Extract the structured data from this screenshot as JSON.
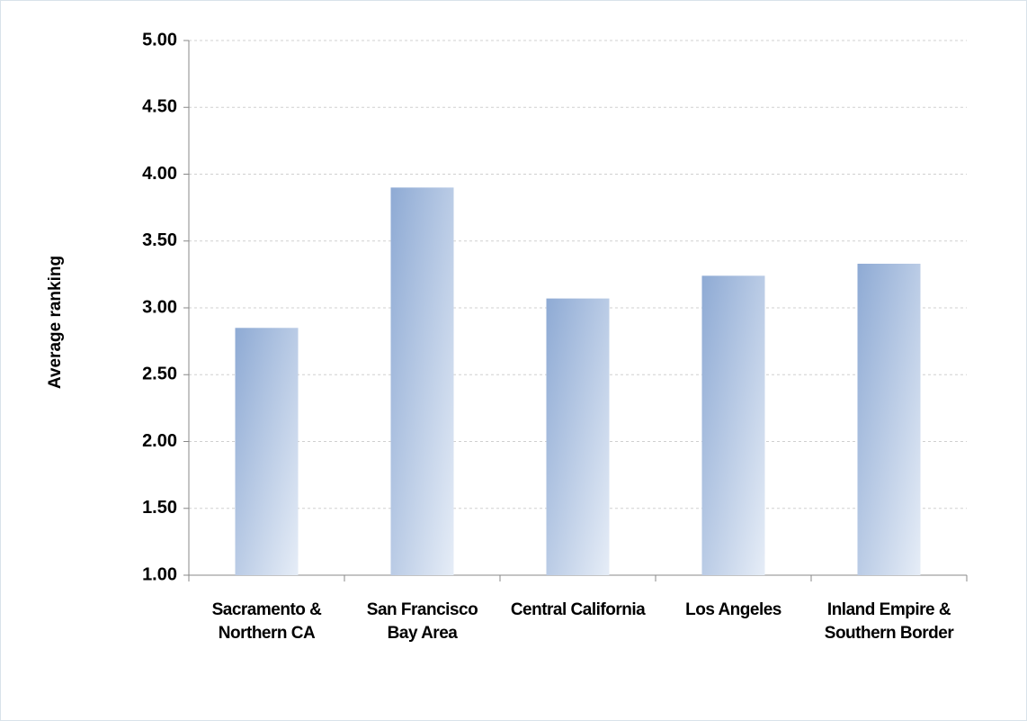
{
  "chart_data": {
    "type": "bar",
    "y_label": "Average ranking",
    "categories": [
      "Sacramento & Northern CA",
      "San Francisco Bay Area",
      "Central California",
      "Los Angeles",
      "Inland Empire & Southern Border"
    ],
    "values": [
      2.85,
      3.9,
      3.07,
      3.24,
      3.33
    ],
    "color": "#94b1d8",
    "ylim": [
      1,
      5
    ],
    "yticks": [
      {
        "value": 1,
        "label": "1.00"
      },
      {
        "value": 1.5,
        "label": "1.50"
      },
      {
        "value": 2,
        "label": "2.00"
      },
      {
        "value": 2.5,
        "label": "2.50"
      },
      {
        "value": 3,
        "label": "3.00"
      },
      {
        "value": 3.5,
        "label": "3.50"
      },
      {
        "value": 4,
        "label": "4.00"
      },
      {
        "value": 4.5,
        "label": "4.50"
      },
      {
        "value": 5,
        "label": "5.00"
      }
    ],
    "grid": true
  }
}
